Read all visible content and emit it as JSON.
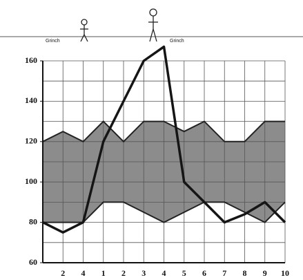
{
  "chart_data": {
    "type": "band-line",
    "annotations": [
      "Grinch",
      "Grinch"
    ],
    "categories": [
      null,
      "2",
      "4",
      "1",
      "2",
      "3",
      "4",
      "5",
      "6",
      "7",
      "8",
      "9",
      "10"
    ],
    "band": {
      "color": "#8c8c8c",
      "upper": [
        120,
        125,
        120,
        130,
        120,
        130,
        130,
        125,
        130,
        120,
        120,
        130,
        130
      ],
      "lower": [
        80,
        80,
        80,
        90,
        90,
        85,
        80,
        85,
        90,
        90,
        85,
        80,
        90
      ]
    },
    "series": [
      {
        "color": "#151515",
        "values": [
          80,
          75,
          80,
          120,
          140,
          160,
          167,
          100,
          90,
          80,
          84,
          90,
          80
        ]
      }
    ],
    "ylim": [
      60,
      160
    ],
    "yticks": [
      60,
      80,
      100,
      120,
      140,
      160
    ],
    "grid_step": 10,
    "grid": true
  }
}
